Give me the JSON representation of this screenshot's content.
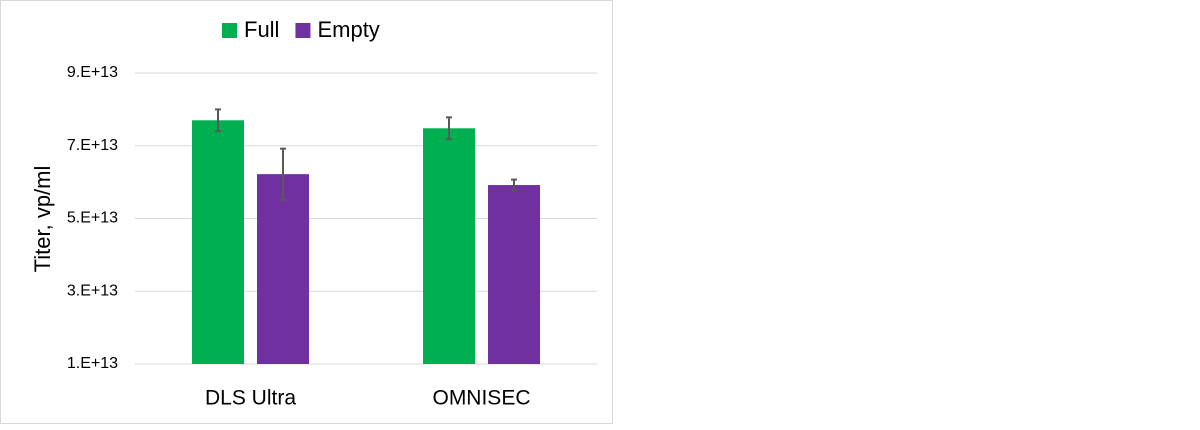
{
  "chart_data": {
    "type": "bar",
    "y_label": "Titer, vp/ml",
    "categories": [
      "DLS Ultra",
      "OMNISEC"
    ],
    "series": [
      {
        "name": "Full",
        "color": "#00b050",
        "values": [
          77000000000000,
          74800000000000
        ],
        "errors": [
          3000000000000,
          3000000000000
        ]
      },
      {
        "name": "Empty",
        "color": "#7030a0",
        "values": [
          62200000000000,
          59200000000000
        ],
        "errors": [
          7000000000000,
          1500000000000
        ]
      }
    ],
    "ylim": [
      10000000000000,
      90000000000000
    ],
    "yticks": [
      {
        "value": 10000000000000,
        "label": "1.E+13"
      },
      {
        "value": 30000000000000,
        "label": "3.E+13"
      },
      {
        "value": 50000000000000,
        "label": "5.E+13"
      },
      {
        "value": 70000000000000,
        "label": "7.E+13"
      },
      {
        "value": 90000000000000,
        "label": "9.E+13"
      }
    ],
    "grid": true,
    "legend": "top"
  }
}
